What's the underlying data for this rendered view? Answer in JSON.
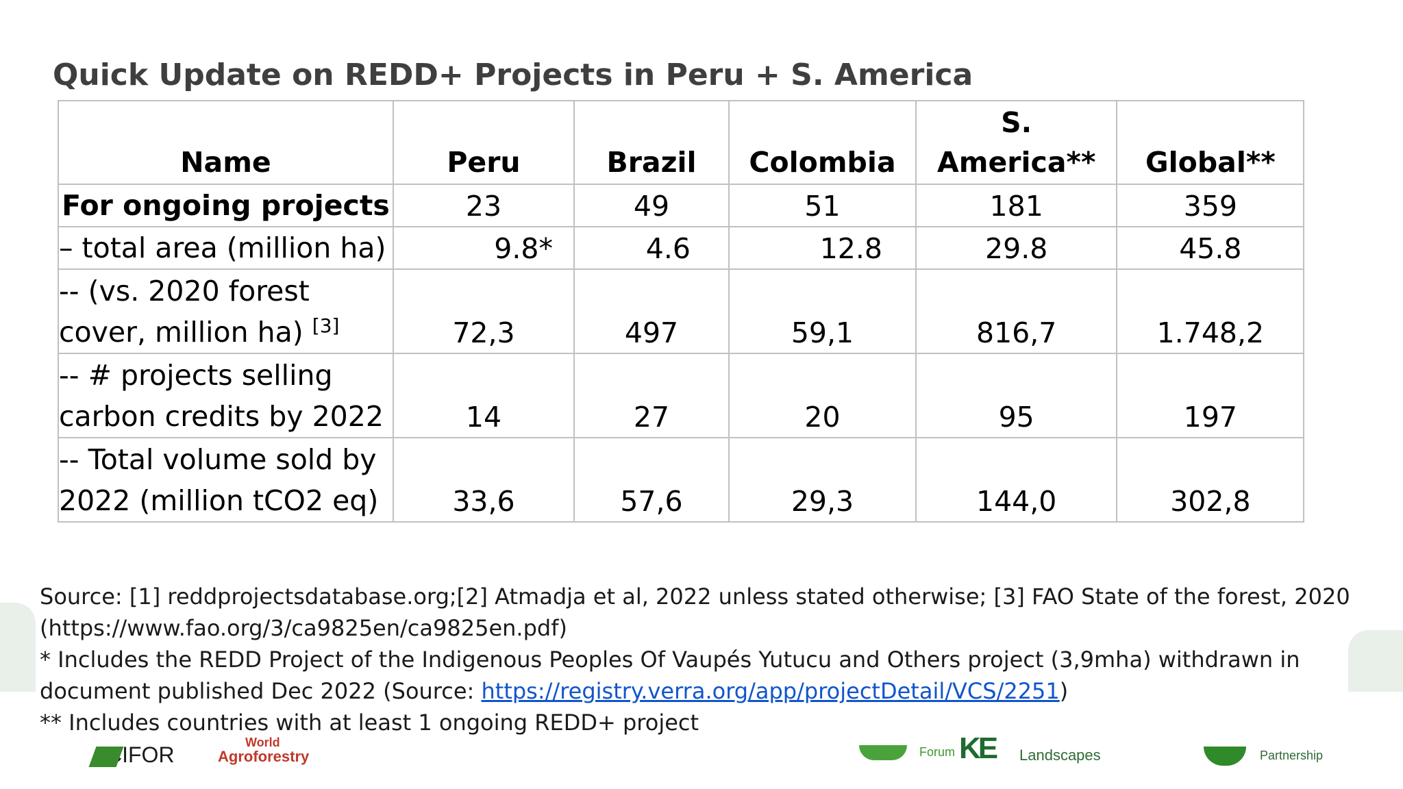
{
  "title": "Quick Update on REDD+ Projects in Peru + S. America",
  "table": {
    "headers": [
      "Name",
      "Peru",
      "Brazil",
      "Colombia",
      "S. America**",
      "Global**"
    ],
    "rows": [
      {
        "label": "For ongoing projects",
        "values": [
          "23",
          "49",
          "51",
          "181",
          "359"
        ]
      },
      {
        "label": "– total area (million ha)",
        "values": [
          "9.8*",
          "4.6",
          "12.8",
          "29.8",
          "45.8"
        ]
      },
      {
        "label_line1": "-- (vs. 2020 forest",
        "label_line2": "cover, million ha)",
        "label_ref": "[3]",
        "values": [
          "72,3",
          "497",
          "59,1",
          "816,7",
          "1.748,2"
        ]
      },
      {
        "label_line1": "-- # projects selling",
        "label_line2": "carbon credits by 2022",
        "values": [
          "14",
          "27",
          "20",
          "95",
          "197"
        ]
      },
      {
        "label_line1": "-- Total volume sold by",
        "label_line2": "2022 (million tCO2 eq)",
        "values": [
          "33,6",
          "57,6",
          "29,3",
          "144,0",
          "302,8"
        ]
      }
    ]
  },
  "footnotes": {
    "source_line1": "Source: [1] reddprojectsdatabase.org;[2] Atmadja et al, 2022 unless stated otherwise; [3] FAO State of the forest, 2020",
    "source_line2": "(https://www.fao.org/3/ca9825en/ca9825en.pdf)",
    "note1_line1": "* Includes the REDD Project of the Indigenous Peoples Of Vaupés Yutucu and Others project (3,9mha) withdrawn in",
    "note1_prefix": "document published Dec 2022 (Source: ",
    "note1_link": "https://registry.verra.org/app/projectDetail/VCS/2251",
    "note1_suffix": ")",
    "note2": "** Includes countries with at least 1 ongoing REDD+ project"
  },
  "logos": {
    "cifor": "CIFOR",
    "agro_top": "World",
    "agro": "Agroforestry",
    "forum": "Forum",
    "landscapes_big": "KE",
    "landscapes": "Landscapes",
    "partnership": "Partnership"
  },
  "colors": {
    "title": "#3f3f3f",
    "border": "#c0c0c0",
    "link": "#1155cc"
  }
}
